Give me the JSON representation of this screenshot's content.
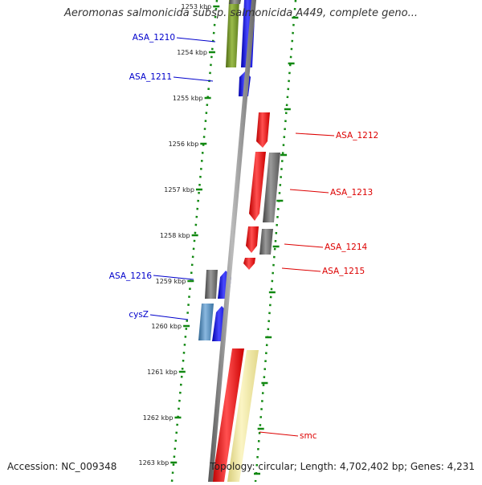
{
  "header": {
    "title": "Aeromonas salmonicida subsp. salmonicida A449, complete geno..."
  },
  "footer": {
    "accession": "Accession: NC_009348",
    "summary": "Topology: circular; Length: 4,702,402 bp; Genes: 4,231"
  },
  "colors": {
    "backbone": "#777777",
    "forward_label": "#0000cc",
    "reverse_label": "#dd0000",
    "tick": "#118811",
    "gene_blue": "#0000ee",
    "gene_gray": "#666666",
    "gene_red": "#ee0000",
    "gene_olive": "#6b8e23",
    "gene_steel": "#4682b4",
    "gene_yellow": "#f0e68c"
  },
  "ruler": [
    {
      "label": "1253 kbp"
    },
    {
      "label": "1254 kbp"
    },
    {
      "label": "1255 kbp"
    },
    {
      "label": "1256 kbp"
    },
    {
      "label": "1257 kbp"
    },
    {
      "label": "1258 kbp"
    },
    {
      "label": "1259 kbp"
    },
    {
      "label": "1260 kbp"
    },
    {
      "label": "1261 kbp"
    },
    {
      "label": "1262 kbp"
    },
    {
      "label": "1263 kbp"
    }
  ],
  "genes": [
    {
      "name": "olive-gene"
    },
    {
      "name": "blue-gene-top"
    },
    {
      "name": "gray-gene-top"
    },
    {
      "name": "blue-gene-1211"
    },
    {
      "name": "red-gene-1212"
    },
    {
      "name": "red-gene-1213"
    },
    {
      "name": "gray-gene-1213"
    },
    {
      "name": "red-gene-1214"
    },
    {
      "name": "gray-gene-1214"
    },
    {
      "name": "red-gene-1215"
    },
    {
      "name": "gray-gene-1216"
    },
    {
      "name": "blue-gene-1216"
    },
    {
      "name": "steel-gene-cysz"
    },
    {
      "name": "blue-gene-cysz"
    },
    {
      "name": "red-gene-smc"
    },
    {
      "name": "yellow-gene-smc"
    }
  ],
  "labels": [
    {
      "text": "ASA_1210",
      "strand": "forward"
    },
    {
      "text": "ASA_1211",
      "strand": "forward"
    },
    {
      "text": "ASA_1212",
      "strand": "reverse"
    },
    {
      "text": "ASA_1213",
      "strand": "reverse"
    },
    {
      "text": "ASA_1214",
      "strand": "reverse"
    },
    {
      "text": "ASA_1215",
      "strand": "reverse"
    },
    {
      "text": "ASA_1216",
      "strand": "forward"
    },
    {
      "text": "cysZ",
      "strand": "forward"
    },
    {
      "text": "smc",
      "strand": "reverse"
    }
  ]
}
